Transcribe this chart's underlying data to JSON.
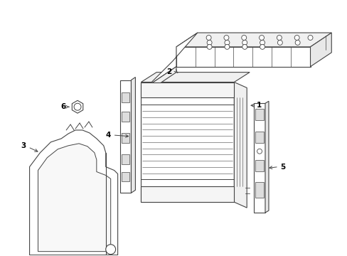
{
  "background_color": "#ffffff",
  "line_color": "#444444",
  "lw": 0.8,
  "figsize": [
    4.89,
    3.6
  ],
  "dpi": 100
}
